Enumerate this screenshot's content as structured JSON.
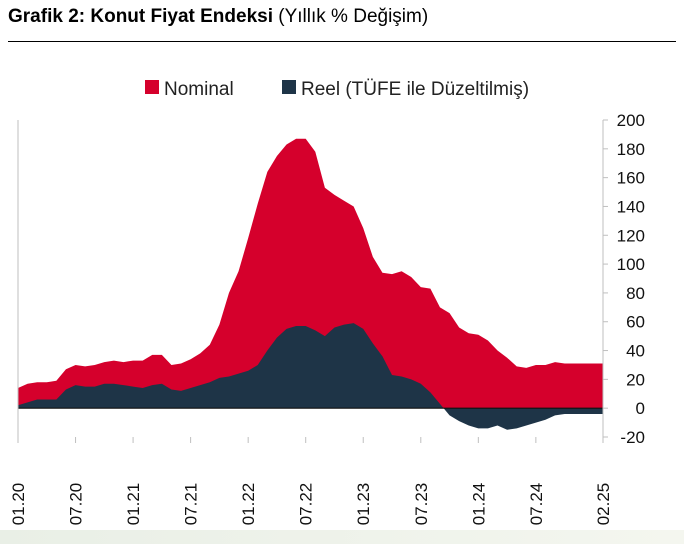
{
  "header": {
    "title_bold": "Grafik 2: Konut Fiyat Endeksi",
    "title_sub": "(Yıllık % Değişim)"
  },
  "colors": {
    "nominal": "#d5002c",
    "reel": "#1e3447",
    "grid": "#bfbfbf"
  },
  "chart_data": {
    "type": "area",
    "legend_position": "top",
    "grid": false,
    "x": [
      "01.20",
      "02.20",
      "03.20",
      "04.20",
      "05.20",
      "06.20",
      "07.20",
      "08.20",
      "09.20",
      "10.20",
      "11.20",
      "12.20",
      "01.21",
      "02.21",
      "03.21",
      "04.21",
      "05.21",
      "06.21",
      "07.21",
      "08.21",
      "09.21",
      "10.21",
      "11.21",
      "12.21",
      "01.22",
      "02.22",
      "03.22",
      "04.22",
      "05.22",
      "06.22",
      "07.22",
      "08.22",
      "09.22",
      "10.22",
      "11.22",
      "12.22",
      "01.23",
      "02.23",
      "03.23",
      "04.23",
      "05.23",
      "06.23",
      "07.23",
      "08.23",
      "09.23",
      "10.23",
      "11.23",
      "12.23",
      "01.24",
      "02.24",
      "03.24",
      "04.24",
      "05.24",
      "06.24",
      "07.24",
      "08.24",
      "09.24",
      "10.24",
      "11.24",
      "12.24",
      "01.25",
      "02.25"
    ],
    "x_tick_labels": [
      "01.20",
      "07.20",
      "01.21",
      "07.21",
      "01.22",
      "07.22",
      "01.23",
      "07.23",
      "01.24",
      "07.24",
      "02.25"
    ],
    "y_tick_labels": [
      "200",
      "180",
      "160",
      "140",
      "120",
      "100",
      "80",
      "60",
      "40",
      "20",
      "0",
      "-20"
    ],
    "ylim": [
      -20,
      200
    ],
    "series": [
      {
        "name": "Nominal",
        "values": [
          14,
          17,
          18,
          18,
          19,
          27,
          30,
          29,
          30,
          32,
          33,
          32,
          33,
          33,
          37,
          37,
          30,
          31,
          34,
          38,
          44,
          58,
          80,
          95,
          118,
          142,
          164,
          175,
          183,
          187,
          187,
          178,
          153,
          148,
          144,
          140,
          125,
          105,
          94,
          93,
          95,
          91,
          84,
          83,
          70,
          66,
          56,
          52,
          51,
          47,
          40,
          35,
          29,
          28,
          30,
          30,
          32,
          31,
          31,
          31,
          31,
          31
        ]
      },
      {
        "name": "Reel (TÜFE ile Düzeltilmiş)",
        "values": [
          2,
          4,
          6,
          6,
          6,
          13,
          16,
          15,
          15,
          17,
          17,
          16,
          15,
          14,
          16,
          17,
          13,
          12,
          14,
          16,
          18,
          21,
          22,
          24,
          26,
          30,
          40,
          49,
          55,
          57,
          57,
          54,
          50,
          56,
          58,
          59,
          55,
          45,
          36,
          23,
          22,
          20,
          17,
          11,
          3,
          -5,
          -9,
          -12,
          -14,
          -14,
          -12,
          -15,
          -14,
          -12,
          -10,
          -8,
          -5,
          -4,
          -4,
          -4,
          -4,
          -4
        ]
      }
    ]
  }
}
